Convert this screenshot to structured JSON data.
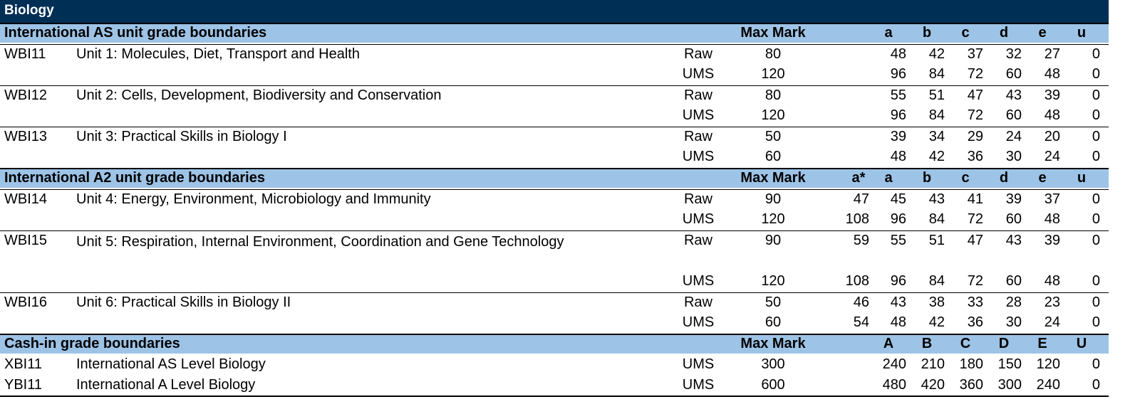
{
  "title": "Biology",
  "sections": [
    {
      "header": {
        "label": "International AS unit grade boundaries",
        "max": "Max Mark",
        "grades": [
          "",
          "a",
          "b",
          "c",
          "d",
          "e",
          "u"
        ]
      },
      "units": [
        {
          "code": "WBI11",
          "name": "Unit 1: Molecules, Diet, Transport and Health",
          "raw": {
            "type": "Raw",
            "max": "80",
            "grades": [
              "",
              "48",
              "42",
              "37",
              "32",
              "27",
              "0"
            ]
          },
          "ums": {
            "type": "UMS",
            "max": "120",
            "grades": [
              "",
              "96",
              "84",
              "72",
              "60",
              "48",
              "0"
            ]
          }
        },
        {
          "code": "WBI12",
          "name": "Unit 2: Cells, Development, Biodiversity and Conservation",
          "raw": {
            "type": "Raw",
            "max": "80",
            "grades": [
              "",
              "55",
              "51",
              "47",
              "43",
              "39",
              "0"
            ]
          },
          "ums": {
            "type": "UMS",
            "max": "120",
            "grades": [
              "",
              "96",
              "84",
              "72",
              "60",
              "48",
              "0"
            ]
          }
        },
        {
          "code": "WBI13",
          "name": "Unit 3: Practical Skills in Biology I",
          "raw": {
            "type": "Raw",
            "max": "50",
            "grades": [
              "",
              "39",
              "34",
              "29",
              "24",
              "20",
              "0"
            ]
          },
          "ums": {
            "type": "UMS",
            "max": "60",
            "grades": [
              "",
              "48",
              "42",
              "36",
              "30",
              "24",
              "0"
            ]
          }
        }
      ]
    },
    {
      "header": {
        "label": "International A2 unit grade boundaries",
        "max": "Max Mark",
        "grades": [
          "a*",
          "a",
          "b",
          "c",
          "d",
          "e",
          "u"
        ]
      },
      "units": [
        {
          "code": "WBI14",
          "name": "Unit 4: Energy, Environment, Microbiology and Immunity",
          "raw": {
            "type": "Raw",
            "max": "90",
            "grades": [
              "47",
              "45",
              "43",
              "41",
              "39",
              "37",
              "0"
            ]
          },
          "ums": {
            "type": "UMS",
            "max": "120",
            "grades": [
              "108",
              "96",
              "84",
              "72",
              "60",
              "48",
              "0"
            ]
          }
        },
        {
          "code": "WBI15",
          "name": "Unit 5: Respiration, Internal Environment, Coordination and Gene Technology",
          "raw": {
            "type": "Raw",
            "max": "90",
            "grades": [
              "59",
              "55",
              "51",
              "47",
              "43",
              "39",
              "0"
            ]
          },
          "ums": {
            "type": "UMS",
            "max": "120",
            "grades": [
              "108",
              "96",
              "84",
              "72",
              "60",
              "48",
              "0"
            ]
          }
        },
        {
          "code": "WBI16",
          "name": "Unit 6: Practical Skills in Biology II",
          "raw": {
            "type": "Raw",
            "max": "50",
            "grades": [
              "46",
              "43",
              "38",
              "33",
              "28",
              "23",
              "0"
            ]
          },
          "ums": {
            "type": "UMS",
            "max": "60",
            "grades": [
              "54",
              "48",
              "42",
              "36",
              "30",
              "24",
              "0"
            ]
          }
        }
      ]
    },
    {
      "header": {
        "label": "Cash-in grade boundaries",
        "max": "Max Mark",
        "grades": [
          "",
          "A",
          "B",
          "C",
          "D",
          "E",
          "U"
        ]
      },
      "quals": [
        {
          "code": "XBI11",
          "name": "International AS Level Biology",
          "type": "UMS",
          "max": "300",
          "grades": [
            "",
            "240",
            "210",
            "180",
            "150",
            "120",
            "0"
          ]
        },
        {
          "code": "YBI11",
          "name": "International A Level Biology",
          "type": "UMS",
          "max": "600",
          "grades": [
            "",
            "480",
            "420",
            "360",
            "300",
            "240",
            "0"
          ]
        }
      ]
    }
  ],
  "colors": {
    "title_bg": "#002F55",
    "header_bg": "#9DC3E6"
  }
}
